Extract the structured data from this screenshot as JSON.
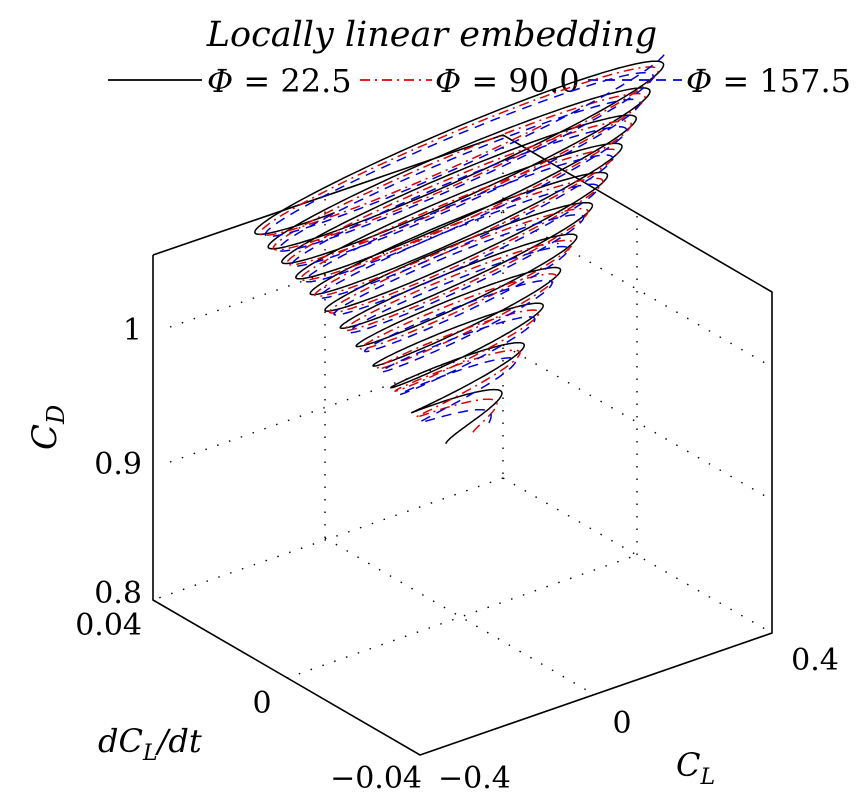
{
  "chart_data": {
    "type": "line",
    "projection": "3d",
    "title": "Locally linear embedding",
    "xlabel": "C",
    "xlabel_sub": "L",
    "ylabel_prefix": "dC",
    "ylabel_sub": "L",
    "ylabel_suffix": "/dt",
    "zlabel": "C",
    "zlabel_sub": "D",
    "x_ticks": [
      "−0.4",
      "0",
      "0.4"
    ],
    "y_ticks": [
      "−0.04",
      "0",
      "0.04"
    ],
    "z_ticks": [
      "0.8",
      "0.9",
      "1"
    ],
    "xlim": [
      -0.4,
      0.4
    ],
    "ylim": [
      -0.04,
      0.04
    ],
    "zlim": [
      0.8,
      1.05
    ],
    "grid": true,
    "legend_position": "top",
    "legend_symbol": "Φ",
    "series": [
      {
        "name": "Φ = 22.5",
        "value": "22.5",
        "color": "#000000",
        "dash": "solid",
        "amplitude_scale": 1.0,
        "phase_deg": 0,
        "z_start": 0.82,
        "z_end": 1.035,
        "amp_start": 0.05,
        "amp_end": 0.38
      },
      {
        "name": "Φ = 90.0",
        "value": "90.0",
        "color": "#e00000",
        "dash": "dashdot",
        "amplitude_scale": 0.985,
        "phase_deg": 60,
        "z_start": 0.82,
        "z_end": 1.035,
        "amp_start": 0.05,
        "amp_end": 0.38
      },
      {
        "name": "Φ = 157.5",
        "value": "157.5",
        "color": "#0000dd",
        "dash": "dashed",
        "amplitude_scale": 0.97,
        "phase_deg": 120,
        "z_start": 0.82,
        "z_end": 1.035,
        "amp_start": 0.05,
        "amp_end": 0.38
      }
    ]
  }
}
